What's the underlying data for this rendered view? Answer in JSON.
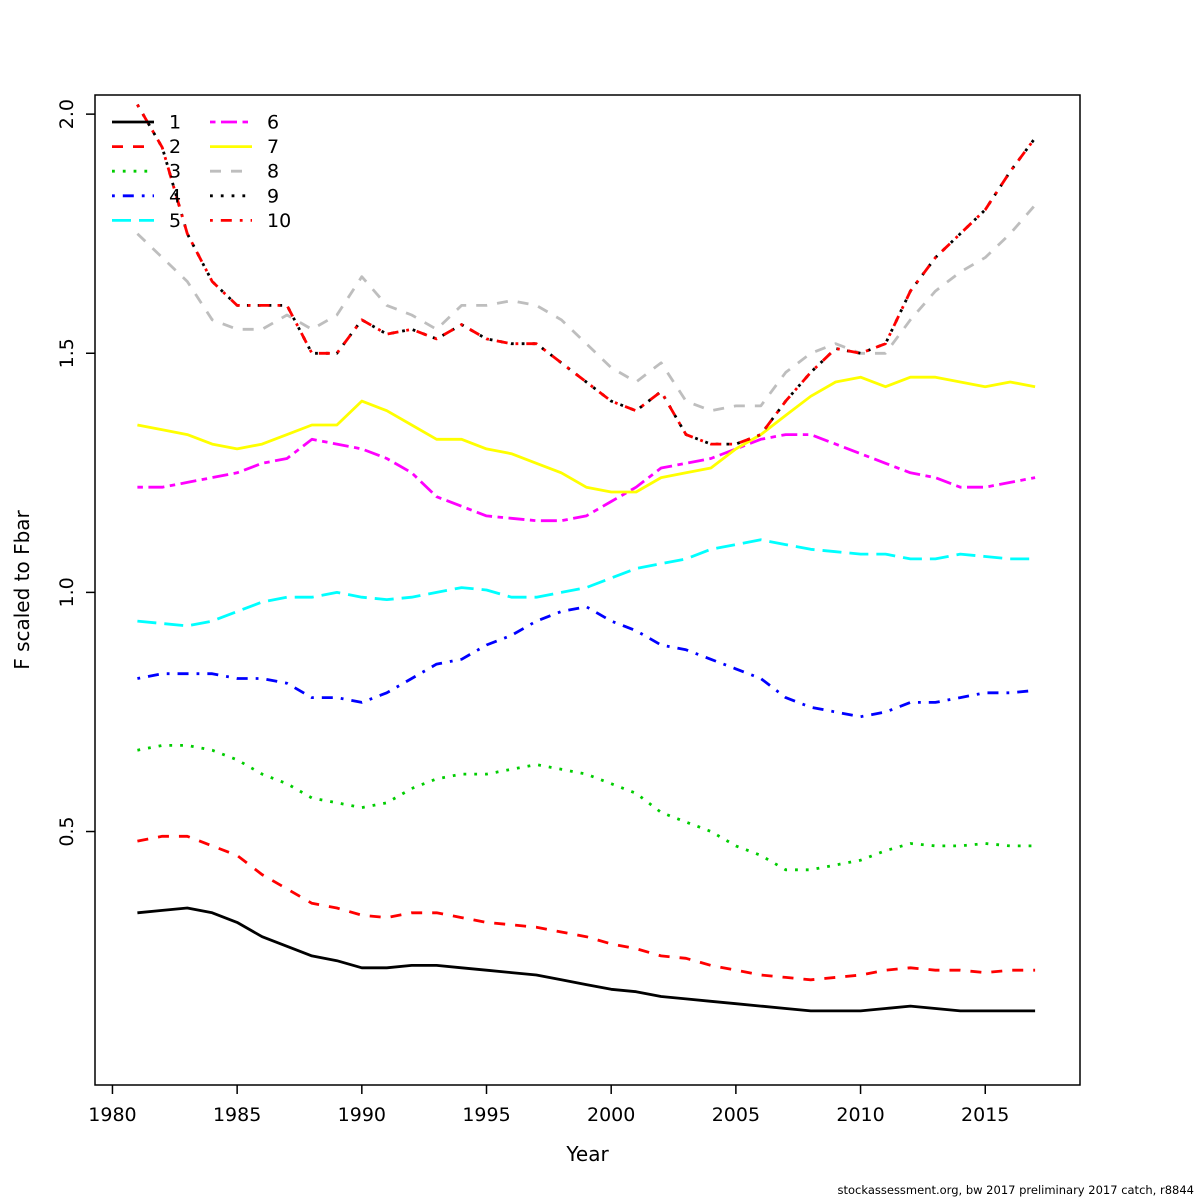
{
  "footer": {
    "note": "stockassessment.org, bw 2017 preliminary 2017 catch, r8844"
  },
  "chart_data": {
    "type": "line",
    "title": "",
    "xlabel": "Year",
    "ylabel": "F scaled to Fbar",
    "legend_position": "top-left",
    "grid": false,
    "xlim": [
      1979.3,
      2018.8
    ],
    "ylim": [
      -0.03,
      2.04
    ],
    "x_ticks": [
      1980,
      1985,
      1990,
      1995,
      2000,
      2005,
      2010,
      2015
    ],
    "y_ticks": [
      "0.5",
      "1.0",
      "1.5",
      "2.0"
    ],
    "y_tick_values": [
      0.5,
      1.0,
      1.5,
      2.0
    ],
    "x": [
      1981,
      1982,
      1983,
      1984,
      1985,
      1986,
      1987,
      1988,
      1989,
      1990,
      1991,
      1992,
      1993,
      1994,
      1995,
      1996,
      1997,
      1998,
      1999,
      2000,
      2001,
      2002,
      2003,
      2004,
      2005,
      2006,
      2007,
      2008,
      2009,
      2010,
      2011,
      2012,
      2013,
      2014,
      2015,
      2016,
      2017
    ],
    "series": [
      {
        "name": "1",
        "color": "#000000",
        "linestyle": "solid",
        "values": [
          0.33,
          0.335,
          0.34,
          0.33,
          0.31,
          0.28,
          0.26,
          0.24,
          0.23,
          0.215,
          0.215,
          0.22,
          0.22,
          0.215,
          0.21,
          0.205,
          0.2,
          0.19,
          0.18,
          0.17,
          0.165,
          0.155,
          0.15,
          0.145,
          0.14,
          0.135,
          0.13,
          0.125,
          0.125,
          0.125,
          0.13,
          0.135,
          0.13,
          0.125,
          0.125,
          0.125,
          0.125
        ]
      },
      {
        "name": "2",
        "color": "#FF0000",
        "linestyle": "dashed",
        "values": [
          0.48,
          0.49,
          0.49,
          0.47,
          0.45,
          0.41,
          0.38,
          0.35,
          0.34,
          0.325,
          0.32,
          0.33,
          0.33,
          0.32,
          0.31,
          0.305,
          0.3,
          0.29,
          0.28,
          0.265,
          0.255,
          0.24,
          0.235,
          0.22,
          0.21,
          0.2,
          0.195,
          0.19,
          0.195,
          0.2,
          0.21,
          0.215,
          0.21,
          0.21,
          0.205,
          0.21,
          0.21
        ]
      },
      {
        "name": "3",
        "color": "#00CD00",
        "linestyle": "dotted",
        "values": [
          0.67,
          0.68,
          0.68,
          0.67,
          0.65,
          0.62,
          0.6,
          0.57,
          0.56,
          0.55,
          0.56,
          0.59,
          0.61,
          0.62,
          0.62,
          0.63,
          0.64,
          0.63,
          0.62,
          0.6,
          0.58,
          0.54,
          0.52,
          0.5,
          0.47,
          0.45,
          0.42,
          0.42,
          0.43,
          0.44,
          0.46,
          0.475,
          0.47,
          0.47,
          0.475,
          0.47,
          0.47
        ]
      },
      {
        "name": "4",
        "color": "#0000FF",
        "linestyle": "dotdash",
        "values": [
          0.82,
          0.83,
          0.83,
          0.83,
          0.82,
          0.82,
          0.81,
          0.78,
          0.78,
          0.77,
          0.79,
          0.82,
          0.85,
          0.86,
          0.89,
          0.91,
          0.94,
          0.96,
          0.97,
          0.94,
          0.92,
          0.89,
          0.88,
          0.86,
          0.84,
          0.82,
          0.78,
          0.76,
          0.75,
          0.74,
          0.75,
          0.77,
          0.77,
          0.78,
          0.79,
          0.79,
          0.795
        ]
      },
      {
        "name": "5",
        "color": "#00FFFF",
        "linestyle": "longdash",
        "values": [
          0.94,
          0.935,
          0.93,
          0.94,
          0.96,
          0.98,
          0.99,
          0.99,
          1.0,
          0.99,
          0.985,
          0.99,
          1.0,
          1.01,
          1.005,
          0.99,
          0.99,
          1.0,
          1.01,
          1.03,
          1.05,
          1.06,
          1.07,
          1.09,
          1.1,
          1.11,
          1.1,
          1.09,
          1.085,
          1.08,
          1.08,
          1.07,
          1.07,
          1.08,
          1.075,
          1.07,
          1.07
        ]
      },
      {
        "name": "6",
        "color": "#FF00FF",
        "linestyle": "twodash",
        "values": [
          1.22,
          1.22,
          1.23,
          1.24,
          1.25,
          1.27,
          1.28,
          1.32,
          1.31,
          1.3,
          1.28,
          1.25,
          1.2,
          1.18,
          1.16,
          1.155,
          1.15,
          1.15,
          1.16,
          1.19,
          1.22,
          1.26,
          1.27,
          1.28,
          1.3,
          1.32,
          1.33,
          1.33,
          1.31,
          1.29,
          1.27,
          1.25,
          1.24,
          1.22,
          1.22,
          1.23,
          1.24
        ]
      },
      {
        "name": "7",
        "color": "#FFFF00",
        "linestyle": "solid",
        "values": [
          1.35,
          1.34,
          1.33,
          1.31,
          1.3,
          1.31,
          1.33,
          1.35,
          1.35,
          1.4,
          1.38,
          1.35,
          1.32,
          1.32,
          1.3,
          1.29,
          1.27,
          1.25,
          1.22,
          1.21,
          1.21,
          1.24,
          1.25,
          1.26,
          1.3,
          1.33,
          1.37,
          1.41,
          1.44,
          1.45,
          1.43,
          1.45,
          1.45,
          1.44,
          1.43,
          1.44,
          1.43
        ]
      },
      {
        "name": "8",
        "color": "#BEBEBE",
        "linestyle": "dashed",
        "values": [
          1.75,
          1.7,
          1.65,
          1.57,
          1.55,
          1.55,
          1.58,
          1.55,
          1.58,
          1.66,
          1.6,
          1.58,
          1.55,
          1.6,
          1.6,
          1.61,
          1.6,
          1.57,
          1.52,
          1.47,
          1.44,
          1.48,
          1.4,
          1.38,
          1.39,
          1.39,
          1.46,
          1.5,
          1.52,
          1.5,
          1.5,
          1.57,
          1.63,
          1.67,
          1.7,
          1.75,
          1.81
        ]
      },
      {
        "name": "9",
        "color": "#000000",
        "linestyle": "dotted",
        "values": [
          2.02,
          1.93,
          1.75,
          1.65,
          1.6,
          1.6,
          1.6,
          1.5,
          1.5,
          1.57,
          1.54,
          1.55,
          1.53,
          1.56,
          1.53,
          1.52,
          1.52,
          1.48,
          1.44,
          1.4,
          1.38,
          1.42,
          1.33,
          1.31,
          1.31,
          1.33,
          1.4,
          1.46,
          1.51,
          1.5,
          1.52,
          1.63,
          1.7,
          1.75,
          1.8,
          1.88,
          1.95
        ]
      },
      {
        "name": "10",
        "color": "#FF0000",
        "linestyle": "dotdash",
        "values": [
          2.02,
          1.93,
          1.75,
          1.65,
          1.6,
          1.6,
          1.6,
          1.5,
          1.5,
          1.57,
          1.54,
          1.55,
          1.53,
          1.56,
          1.53,
          1.52,
          1.52,
          1.48,
          1.44,
          1.4,
          1.38,
          1.42,
          1.33,
          1.31,
          1.31,
          1.33,
          1.4,
          1.46,
          1.51,
          1.5,
          1.52,
          1.63,
          1.7,
          1.75,
          1.8,
          1.88,
          1.95
        ]
      }
    ]
  }
}
